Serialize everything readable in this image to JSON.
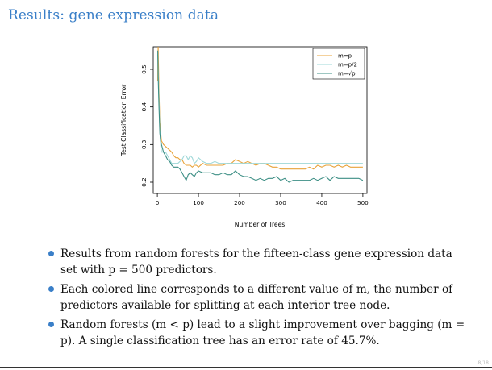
{
  "slide": {
    "title": "Results: gene expression data",
    "page_number": "8/18"
  },
  "bullets": [
    {
      "text": "Results from random forests for the fifteen-class gene expression data set with p = 500 predictors."
    },
    {
      "text": "Each colored line corresponds to a different value of m, the number of predictors available for splitting at each interior tree node."
    },
    {
      "text": "Random forests (m < p) lead to a slight improvement over bagging (m = p). A single classification tree has an error rate of 45.7%."
    }
  ],
  "chart_data": {
    "type": "line",
    "xlabel": "Number of Trees",
    "ylabel": "Test Classification Error",
    "xlim": [
      -10,
      510
    ],
    "ylim": [
      0.17,
      0.56
    ],
    "xticks": [
      0,
      100,
      200,
      300,
      400,
      500
    ],
    "yticks": [
      0.2,
      0.3,
      0.4,
      0.5
    ],
    "grid": false,
    "legend": "top-right",
    "series": [
      {
        "name": "m=p",
        "color": "#e8a33a",
        "x": [
          1,
          2,
          4,
          6,
          8,
          10,
          15,
          20,
          25,
          30,
          35,
          40,
          45,
          50,
          55,
          60,
          65,
          70,
          75,
          80,
          85,
          90,
          95,
          100,
          110,
          120,
          130,
          140,
          150,
          160,
          170,
          180,
          190,
          200,
          210,
          220,
          230,
          240,
          250,
          260,
          270,
          280,
          290,
          300,
          310,
          320,
          330,
          340,
          350,
          360,
          370,
          380,
          390,
          400,
          410,
          420,
          430,
          440,
          450,
          460,
          470,
          480,
          490,
          500
        ],
        "y": [
          0.47,
          0.56,
          0.44,
          0.36,
          0.33,
          0.31,
          0.3,
          0.295,
          0.29,
          0.285,
          0.28,
          0.27,
          0.265,
          0.265,
          0.26,
          0.26,
          0.25,
          0.245,
          0.245,
          0.245,
          0.24,
          0.245,
          0.245,
          0.24,
          0.25,
          0.245,
          0.245,
          0.245,
          0.245,
          0.245,
          0.25,
          0.25,
          0.26,
          0.255,
          0.25,
          0.255,
          0.25,
          0.245,
          0.25,
          0.25,
          0.245,
          0.24,
          0.24,
          0.235,
          0.235,
          0.235,
          0.235,
          0.235,
          0.235,
          0.235,
          0.24,
          0.235,
          0.245,
          0.24,
          0.245,
          0.245,
          0.24,
          0.245,
          0.24,
          0.245,
          0.24,
          0.24,
          0.24,
          0.24
        ]
      },
      {
        "name": "m=p/2",
        "color": "#9fd8d8",
        "x": [
          1,
          2,
          4,
          6,
          8,
          10,
          15,
          20,
          25,
          30,
          35,
          40,
          45,
          50,
          55,
          60,
          65,
          70,
          75,
          80,
          85,
          90,
          95,
          100,
          110,
          120,
          130,
          140,
          150,
          160,
          170,
          180,
          190,
          200,
          210,
          220,
          230,
          240,
          250,
          260,
          270,
          280,
          290,
          300,
          310,
          320,
          330,
          340,
          350,
          360,
          370,
          380,
          390,
          400,
          410,
          420,
          430,
          440,
          450,
          460,
          470,
          480,
          490,
          500
        ],
        "y": [
          0.54,
          0.5,
          0.42,
          0.34,
          0.3,
          0.28,
          0.28,
          0.28,
          0.27,
          0.26,
          0.25,
          0.25,
          0.25,
          0.25,
          0.255,
          0.26,
          0.27,
          0.27,
          0.26,
          0.27,
          0.265,
          0.25,
          0.255,
          0.265,
          0.255,
          0.25,
          0.25,
          0.255,
          0.25,
          0.25,
          0.25,
          0.25,
          0.25,
          0.25,
          0.25,
          0.25,
          0.25,
          0.25,
          0.25,
          0.25,
          0.25,
          0.25,
          0.25,
          0.25,
          0.25,
          0.25,
          0.25,
          0.25,
          0.25,
          0.25,
          0.25,
          0.25,
          0.25,
          0.25,
          0.25,
          0.25,
          0.25,
          0.25,
          0.25,
          0.25,
          0.25,
          0.25,
          0.25,
          0.25
        ]
      },
      {
        "name": "m=√p",
        "color": "#3d8f85",
        "x": [
          1,
          2,
          4,
          6,
          8,
          10,
          15,
          20,
          25,
          30,
          35,
          40,
          45,
          50,
          55,
          60,
          65,
          70,
          75,
          80,
          85,
          90,
          95,
          100,
          110,
          120,
          130,
          140,
          150,
          160,
          170,
          180,
          190,
          200,
          210,
          220,
          230,
          240,
          250,
          260,
          270,
          280,
          290,
          300,
          310,
          320,
          330,
          340,
          350,
          360,
          370,
          380,
          390,
          400,
          410,
          420,
          430,
          440,
          450,
          460,
          470,
          480,
          490,
          500
        ],
        "y": [
          0.55,
          0.48,
          0.4,
          0.33,
          0.31,
          0.3,
          0.28,
          0.27,
          0.26,
          0.255,
          0.245,
          0.24,
          0.24,
          0.24,
          0.235,
          0.225,
          0.215,
          0.205,
          0.22,
          0.225,
          0.22,
          0.215,
          0.225,
          0.23,
          0.225,
          0.225,
          0.225,
          0.22,
          0.22,
          0.225,
          0.22,
          0.22,
          0.23,
          0.22,
          0.215,
          0.215,
          0.21,
          0.205,
          0.21,
          0.205,
          0.21,
          0.21,
          0.215,
          0.205,
          0.21,
          0.2,
          0.205,
          0.205,
          0.205,
          0.205,
          0.205,
          0.21,
          0.205,
          0.21,
          0.215,
          0.205,
          0.215,
          0.21,
          0.21,
          0.21,
          0.21,
          0.21,
          0.21,
          0.205
        ]
      }
    ]
  }
}
